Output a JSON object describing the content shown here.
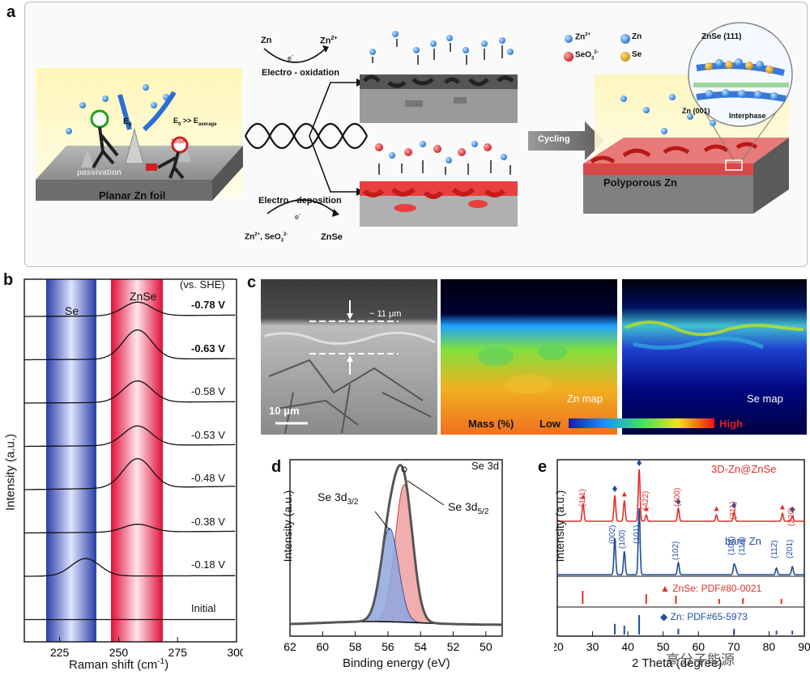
{
  "panel_a": {
    "label": "a",
    "foil_label": "Planar Zn foil",
    "passivation": "passivation",
    "e0": "E",
    "e0_sub": "0",
    "e_ineq_main": "E",
    "e_ineq_sub": "0",
    "e_ineq_rest": " >> E",
    "e_ineq_sub2": "average",
    "znse_badge": "ZnSe",
    "ox_zn": "Zn",
    "ox_zn2": "Zn",
    "ox_zn2_sup": "2+",
    "electron": "e",
    "electron_sup": "-",
    "ox_label": "Electro - oxidation",
    "dep_label": "Electro - deposition",
    "dep_reactants": "Zn",
    "dep_reactants_sup": "2+",
    "dep_reactants2": ", SeO",
    "dep_reactants2_sub": "3",
    "dep_reactants2_sup": "2-",
    "dep_product": "ZnSe",
    "cycling": "Cycling",
    "legend_zn2": "Zn",
    "legend_zn2_sup": "2+",
    "legend_zn": "Zn",
    "legend_seo3": "SeO",
    "legend_seo3_sub": "3",
    "legend_seo3_sup": "2-",
    "legend_se": "Se",
    "znse111": "ZnSe (111)",
    "zn001": "Zn (001)",
    "interphase": "Interphase",
    "polyporous": "Polyporous Zn"
  },
  "panel_b": {
    "label": "b",
    "band_se": "Se",
    "band_znse": "ZnSe",
    "ref": "(vs. SHE)",
    "ylabel": "Intensity (a.u.)",
    "xlabel": "Raman shift (cm",
    "xlabel_sup": "-1",
    "xlabel_end": ")",
    "xticks": [
      "225",
      "250",
      "275",
      "300"
    ]
  },
  "panel_c": {
    "label": "c",
    "thickness": "~ 11 μm",
    "scale": "10 μm",
    "zn_map": "Zn map",
    "se_map": "Se map",
    "mass": "Mass (%)",
    "low": "Low",
    "high": "High"
  },
  "panel_d": {
    "label": "d",
    "tag": "Se 3d",
    "peak1": "Se 3d",
    "peak1_sub": "3/2",
    "peak2": "Se 3d",
    "peak2_sub": "5/2",
    "ylabel": "Intensity (a.u.)",
    "xlabel": "Binding energy (eV)",
    "xticks": [
      "62",
      "60",
      "58",
      "56",
      "54",
      "52",
      "50"
    ]
  },
  "panel_e": {
    "label": "e",
    "series1": "3D-Zn@ZnSe",
    "series2": "bare Zn",
    "ref1": "ZnSe: PDF#80-0021",
    "ref2": "Zn: PDF#65-5973",
    "ylabel": "Intensity (a.u.)",
    "xlabel": "2 Theta (degree)",
    "xticks": [
      "20",
      "30",
      "40",
      "50",
      "60",
      "70",
      "80",
      "90"
    ],
    "hkl_red": [
      "(111)",
      "(422)",
      "(400)",
      "(311)",
      "(220)"
    ],
    "hkl_blue": [
      "(002)",
      "(100)",
      "(101)",
      "(102)",
      "(103)",
      "(110)",
      "(112)",
      "(201)"
    ]
  },
  "watermark": "高分子能源",
  "colors": {
    "red": "#e0302c",
    "blue": "#1f4e9c",
    "se_band": "#3a4fb0",
    "znse_band": "#e02040"
  },
  "chart_data": [
    {
      "type": "line",
      "id": "raman",
      "xlabel": "Raman shift (cm-1)",
      "ylabel": "Intensity (a.u.)",
      "xlim": [
        210,
        300
      ],
      "series": [
        {
          "name": "-0.78 V",
          "center": 258,
          "amp": 0.35,
          "base": 0.12
        },
        {
          "name": "-0.63 V",
          "center": 258,
          "amp": 0.75,
          "base": 0.1
        },
        {
          "name": "-0.58 V",
          "center": 258,
          "amp": 0.55,
          "base": 0.12
        },
        {
          "name": "-0.53 V",
          "center": 258,
          "amp": 0.5,
          "base": 0.15
        },
        {
          "name": "-0.48 V",
          "center": 258,
          "amp": 0.75,
          "base": 0.3
        },
        {
          "name": "-0.38 V",
          "center": 258,
          "amp": 0.2,
          "base": 0.15
        },
        {
          "name": "-0.18 V",
          "center": 236,
          "amp": 0.45,
          "base": 0.05
        },
        {
          "name": "Initial",
          "center": 250,
          "amp": 0.0,
          "base": 0.0
        }
      ]
    },
    {
      "type": "line",
      "id": "xps",
      "xlabel": "Binding energy (eV)",
      "ylabel": "Intensity (a.u.)",
      "xlim": [
        62,
        49
      ],
      "peaks": [
        {
          "name": "Se 3d5/2",
          "center": 55.0,
          "height": 1.0
        },
        {
          "name": "Se 3d3/2",
          "center": 55.9,
          "height": 0.68
        }
      ]
    },
    {
      "type": "line",
      "id": "xrd",
      "xlabel": "2 Theta (degree)",
      "ylabel": "Intensity (a.u.)",
      "xlim": [
        20,
        90
      ],
      "series": [
        {
          "name": "3D-Zn@ZnSe",
          "peaks": [
            [
              27.3,
              0.35
            ],
            [
              36.3,
              0.5
            ],
            [
              39.0,
              0.4
            ],
            [
              43.2,
              1.0
            ],
            [
              45.2,
              0.12
            ],
            [
              54.3,
              0.25
            ],
            [
              65.1,
              0.12
            ],
            [
              70.1,
              0.18
            ],
            [
              83.8,
              0.15
            ],
            [
              86.6,
              0.1
            ]
          ]
        },
        {
          "name": "bare Zn",
          "peaks": [
            [
              36.3,
              0.55
            ],
            [
              39.0,
              0.35
            ],
            [
              43.2,
              1.0
            ],
            [
              54.3,
              0.18
            ],
            [
              70.1,
              0.15
            ],
            [
              70.6,
              0.08
            ],
            [
              82.1,
              0.1
            ],
            [
              86.6,
              0.12
            ]
          ]
        },
        {
          "name": "ZnSe: PDF#80-0021",
          "peaks": [
            [
              27.2,
              0.8
            ],
            [
              45.2,
              0.6
            ],
            [
              53.6,
              0.5
            ],
            [
              65.9,
              0.3
            ],
            [
              72.6,
              0.35
            ],
            [
              83.5,
              0.3
            ]
          ]
        },
        {
          "name": "Zn: PDF#65-5973",
          "peaks": [
            [
              36.3,
              0.55
            ],
            [
              39.0,
              0.45
            ],
            [
              43.2,
              1.0
            ],
            [
              54.3,
              0.3
            ],
            [
              70.1,
              0.3
            ],
            [
              82.1,
              0.2
            ],
            [
              86.6,
              0.2
            ]
          ]
        }
      ]
    }
  ]
}
